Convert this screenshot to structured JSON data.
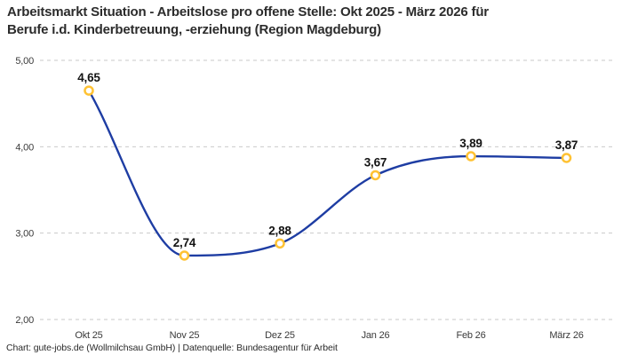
{
  "title": "Arbeitsmarkt Situation - Arbeitslose pro offene Stelle: Okt 2025 - März 2026 für\nBerufe i.d. Kinderbetreuung, -erziehung (Region Magdeburg)",
  "footer": "Chart: gute-jobs.de (Wollmilchsau GmbH) | Datenquelle: Bundesagentur für Arbeit",
  "chart_data": {
    "type": "line",
    "title": "Arbeitsmarkt Situation - Arbeitslose pro offene Stelle: Okt 2025 - März 2026 für Berufe i.d. Kinderbetreuung, -erziehung (Region Magdeburg)",
    "categories": [
      "Okt 25",
      "Nov 25",
      "Dez 25",
      "Jan 26",
      "Feb 26",
      "März 26"
    ],
    "values": [
      4.65,
      2.74,
      2.88,
      3.67,
      3.89,
      3.87
    ],
    "value_labels": [
      "4,65",
      "2,74",
      "2,88",
      "3,67",
      "3,89",
      "3,87"
    ],
    "xlabel": "",
    "ylabel": "",
    "ylim": [
      2,
      5
    ],
    "y_ticks": [
      2,
      3,
      4,
      5
    ],
    "y_tick_labels": [
      "2,00",
      "3,00",
      "4,00",
      "5,00"
    ],
    "grid": "horizontal-dashed",
    "legend_position": "none",
    "curve": "smooth",
    "colors": {
      "line": "#1e3da3",
      "marker_stroke": "#ffc233",
      "marker_fill": "#ffffff",
      "grid": "#c9c9c9",
      "background": "#ffffff"
    }
  }
}
